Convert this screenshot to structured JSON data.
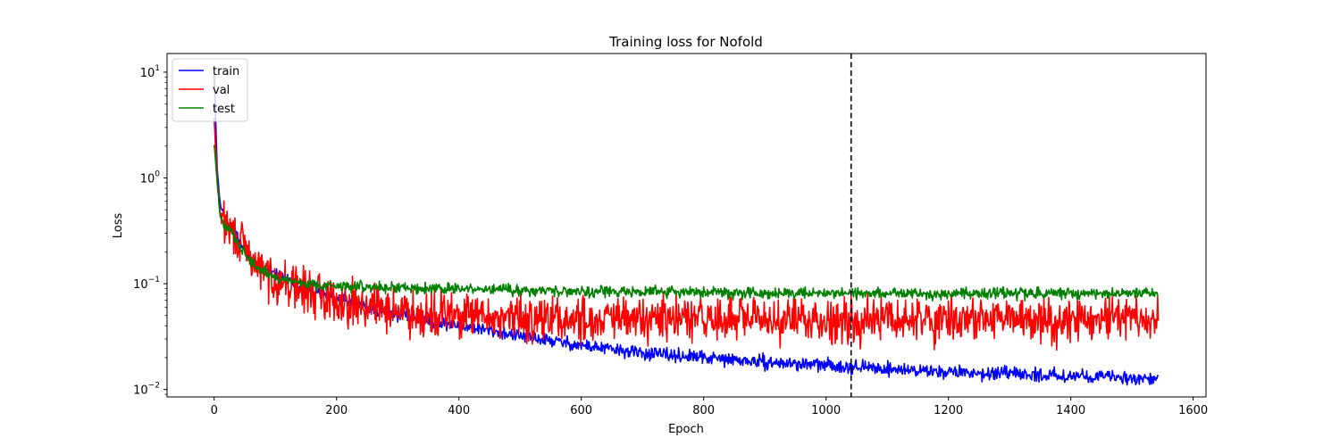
{
  "chart_data": {
    "type": "line",
    "title": "Training loss for Nofold",
    "xlabel": "Epoch",
    "ylabel": "Loss",
    "yscale": "log",
    "xlim": [
      -77,
      1621
    ],
    "ylim": [
      0.0085,
      15
    ],
    "xticks": [
      0,
      200,
      400,
      600,
      800,
      1000,
      1200,
      1400,
      1600
    ],
    "xtick_labels": [
      "0",
      "200",
      "400",
      "600",
      "800",
      "1000",
      "1200",
      "1400",
      "1600"
    ],
    "yticks": [
      0.01,
      0.1,
      1,
      10
    ],
    "ytick_labels": [
      {
        "base": "10",
        "exp": "−2"
      },
      {
        "base": "10",
        "exp": "−1"
      },
      {
        "base": "10",
        "exp": "0"
      },
      {
        "base": "10",
        "exp": "1"
      }
    ],
    "grid": false,
    "legend_position": "upper-left",
    "vline": {
      "x": 1041,
      "color": "#000000",
      "style": "dashed"
    },
    "series": [
      {
        "name": "train",
        "color": "#0000ff",
        "x": [
          0,
          5,
          10,
          20,
          30,
          40,
          60,
          80,
          100,
          150,
          200,
          250,
          300,
          350,
          400,
          450,
          500,
          550,
          600,
          650,
          700,
          750,
          800,
          850,
          900,
          950,
          1000,
          1050,
          1100,
          1150,
          1200,
          1250,
          1300,
          1350,
          1400,
          1450,
          1500,
          1543
        ],
        "values": [
          10,
          1.2,
          0.55,
          0.4,
          0.35,
          0.26,
          0.17,
          0.14,
          0.12,
          0.09,
          0.072,
          0.06,
          0.052,
          0.045,
          0.04,
          0.036,
          0.032,
          0.029,
          0.026,
          0.024,
          0.022,
          0.021,
          0.02,
          0.019,
          0.018,
          0.0175,
          0.017,
          0.0163,
          0.0157,
          0.0151,
          0.0147,
          0.0143,
          0.014,
          0.0137,
          0.0135,
          0.0132,
          0.0129,
          0.0125
        ],
        "noise": 0.07,
        "seed": 11
      },
      {
        "name": "val",
        "color": "#ff0000",
        "x": [
          0,
          5,
          10,
          20,
          30,
          40,
          60,
          80,
          100,
          150,
          200,
          250,
          300,
          350,
          400,
          450,
          500,
          600,
          700,
          800,
          900,
          1000,
          1100,
          1200,
          1300,
          1400,
          1500,
          1543
        ],
        "values": [
          3.5,
          1.0,
          0.45,
          0.35,
          0.3,
          0.26,
          0.17,
          0.13,
          0.11,
          0.085,
          0.07,
          0.062,
          0.056,
          0.052,
          0.05,
          0.048,
          0.047,
          0.046,
          0.046,
          0.046,
          0.046,
          0.046,
          0.046,
          0.046,
          0.046,
          0.046,
          0.046,
          0.045
        ],
        "noise": 0.24,
        "seed": 29
      },
      {
        "name": "test",
        "color": "#008000",
        "x": [
          0,
          5,
          10,
          20,
          30,
          40,
          60,
          80,
          100,
          150,
          200,
          300,
          400,
          500,
          600,
          700,
          800,
          900,
          1000,
          1100,
          1200,
          1300,
          1400,
          1500,
          1543
        ],
        "values": [
          2.1,
          0.9,
          0.42,
          0.34,
          0.3,
          0.24,
          0.16,
          0.13,
          0.115,
          0.1,
          0.095,
          0.092,
          0.089,
          0.087,
          0.085,
          0.084,
          0.083,
          0.082,
          0.082,
          0.081,
          0.081,
          0.081,
          0.081,
          0.081,
          0.081
        ],
        "noise": 0.06,
        "seed": 47
      }
    ]
  }
}
